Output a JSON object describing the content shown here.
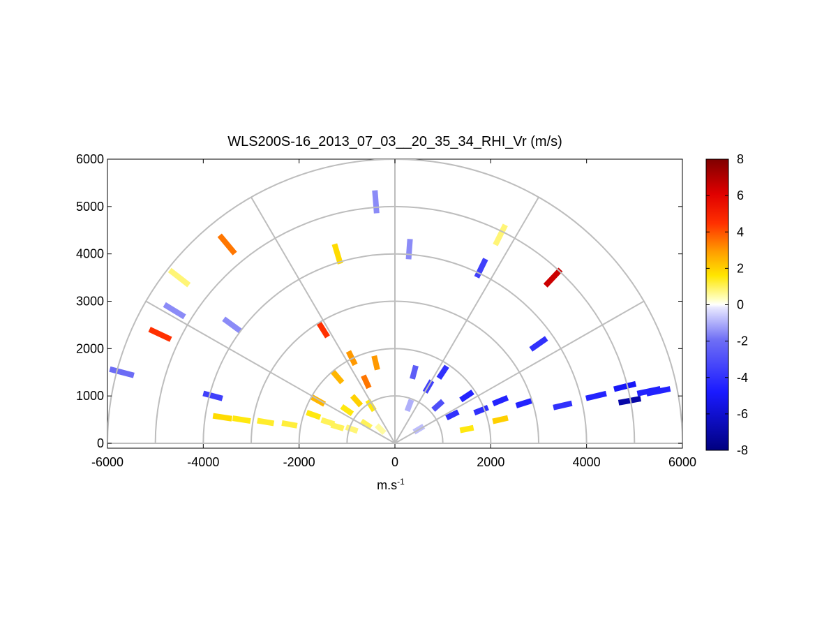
{
  "chart_data": {
    "type": "heatmap",
    "subtype": "polar-rhi-scan",
    "title": "WLS200S-16_2013_07_03__20_35_34_RHI_Vr (m/s)",
    "xlabel": "m.s",
    "xlabel_sup": "-1",
    "ylabel": "",
    "xlim": [
      -6000,
      6000
    ],
    "ylim": [
      -100,
      6000
    ],
    "xticks": [
      "-6000",
      "-4000",
      "-2000",
      "0",
      "2000",
      "4000",
      "6000"
    ],
    "yticks": [
      "0",
      "1000",
      "2000",
      "3000",
      "4000",
      "5000",
      "6000"
    ],
    "range_rings": [
      1000,
      2000,
      3000,
      4000,
      5000,
      6000
    ],
    "radial_spokes_deg": [
      0,
      30,
      60,
      90,
      120,
      150,
      180
    ],
    "grid": true,
    "colorbar": {
      "range": [
        -8,
        8
      ],
      "ticks": [
        "8",
        "6",
        "4",
        "2",
        "0",
        "-2",
        "-4",
        "-6",
        "-8"
      ],
      "placement": "right"
    },
    "points": [
      {
        "x": -1400,
        "y": 450,
        "v": 1.0
      },
      {
        "x": -1200,
        "y": 350,
        "v": 1.0
      },
      {
        "x": -1000,
        "y": 700,
        "v": 1.5
      },
      {
        "x": -900,
        "y": 300,
        "v": 0.8
      },
      {
        "x": -800,
        "y": 900,
        "v": 2.0
      },
      {
        "x": -600,
        "y": 400,
        "v": 1.0
      },
      {
        "x": -600,
        "y": 1300,
        "v": 3.5
      },
      {
        "x": -500,
        "y": 800,
        "v": 1.5
      },
      {
        "x": -400,
        "y": 1700,
        "v": 3.0
      },
      {
        "x": -1600,
        "y": 900,
        "v": 2.5
      },
      {
        "x": -1200,
        "y": 1400,
        "v": 2.5
      },
      {
        "x": -900,
        "y": 1800,
        "v": 3.0
      },
      {
        "x": -1700,
        "y": 600,
        "v": 1.5
      },
      {
        "x": -300,
        "y": 300,
        "v": 0.5
      },
      {
        "x": -2200,
        "y": 400,
        "v": 1.2
      },
      {
        "x": -2700,
        "y": 450,
        "v": 1.3
      },
      {
        "x": -3200,
        "y": 500,
        "v": 1.5
      },
      {
        "x": -3600,
        "y": 550,
        "v": 1.8
      },
      {
        "x": 300,
        "y": 800,
        "v": -1.0
      },
      {
        "x": 500,
        "y": 300,
        "v": -0.8
      },
      {
        "x": 400,
        "y": 1500,
        "v": -2.5
      },
      {
        "x": 700,
        "y": 1200,
        "v": -3.5
      },
      {
        "x": 900,
        "y": 800,
        "v": -3.0
      },
      {
        "x": 1200,
        "y": 600,
        "v": -4.0
      },
      {
        "x": 1500,
        "y": 1000,
        "v": -4.5
      },
      {
        "x": 1800,
        "y": 700,
        "v": -4.0
      },
      {
        "x": 1000,
        "y": 1500,
        "v": -4.0
      },
      {
        "x": 2200,
        "y": 900,
        "v": -4.5
      },
      {
        "x": 2700,
        "y": 850,
        "v": -4.5
      },
      {
        "x": 3500,
        "y": 800,
        "v": -4.0
      },
      {
        "x": 4200,
        "y": 1000,
        "v": -4.5
      },
      {
        "x": 4800,
        "y": 1200,
        "v": -5.0
      },
      {
        "x": 5300,
        "y": 1100,
        "v": -4.5
      },
      {
        "x": 4900,
        "y": 900,
        "v": -7.0
      },
      {
        "x": 1500,
        "y": 300,
        "v": 1.5
      },
      {
        "x": 2200,
        "y": 500,
        "v": 2.0
      },
      {
        "x": -4900,
        "y": 2300,
        "v": 4.5
      },
      {
        "x": -4500,
        "y": 3500,
        "v": 0.8
      },
      {
        "x": -3500,
        "y": 4200,
        "v": 3.5
      },
      {
        "x": -1200,
        "y": 4000,
        "v": 1.8
      },
      {
        "x": -1500,
        "y": 2400,
        "v": 4.5
      },
      {
        "x": 300,
        "y": 4100,
        "v": -1.5
      },
      {
        "x": 1800,
        "y": 3700,
        "v": -3.5
      },
      {
        "x": 3300,
        "y": 3500,
        "v": 6.5
      },
      {
        "x": 2200,
        "y": 4400,
        "v": 0.8
      },
      {
        "x": -400,
        "y": 5100,
        "v": -1.5
      },
      {
        "x": -3400,
        "y": 2500,
        "v": -1.5
      },
      {
        "x": -4600,
        "y": 2800,
        "v": -1.5
      },
      {
        "x": -5700,
        "y": 1500,
        "v": -2.0
      },
      {
        "x": -3800,
        "y": 1000,
        "v": -3.5
      },
      {
        "x": 3000,
        "y": 2100,
        "v": -4.0
      },
      {
        "x": 5500,
        "y": 1100,
        "v": -4.5
      }
    ]
  }
}
